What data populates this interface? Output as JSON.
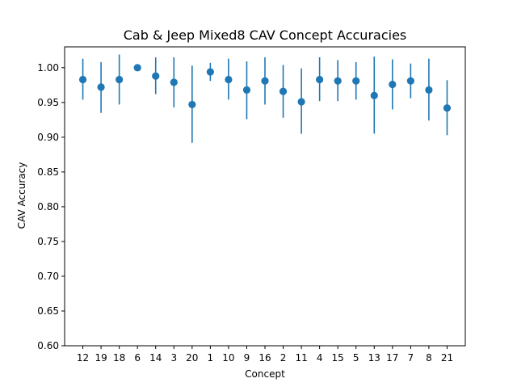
{
  "chart_data": {
    "type": "scatter",
    "title": "Cab & Jeep Mixed8 CAV Concept Accuracies",
    "xlabel": "Concept",
    "ylabel": "CAV Accuracy",
    "ylim": [
      0.6,
      1.03
    ],
    "yticks": [
      0.6,
      0.65,
      0.7,
      0.75,
      0.8,
      0.85,
      0.9,
      0.95,
      1.0
    ],
    "ytick_labels": [
      "0.60",
      "0.65",
      "0.70",
      "0.75",
      "0.80",
      "0.85",
      "0.90",
      "0.95",
      "1.00"
    ],
    "grid": false,
    "legend": "none",
    "categories": [
      "12",
      "19",
      "18",
      "6",
      "14",
      "3",
      "20",
      "1",
      "10",
      "9",
      "16",
      "2",
      "11",
      "4",
      "15",
      "5",
      "13",
      "17",
      "7",
      "8",
      "21"
    ],
    "values": [
      0.983,
      0.972,
      0.983,
      1.0,
      0.988,
      0.979,
      0.947,
      0.994,
      0.983,
      0.968,
      0.981,
      0.966,
      0.951,
      0.983,
      0.981,
      0.981,
      0.96,
      0.976,
      0.981,
      0.968,
      0.942
    ],
    "error_low": [
      0.954,
      0.935,
      0.947,
      1.0,
      0.962,
      0.943,
      0.892,
      0.981,
      0.954,
      0.926,
      0.947,
      0.928,
      0.905,
      0.952,
      0.952,
      0.954,
      0.905,
      0.94,
      0.956,
      0.924,
      0.903
    ],
    "error_high": [
      1.013,
      1.008,
      1.019,
      1.0,
      1.015,
      1.015,
      1.003,
      1.007,
      1.013,
      1.009,
      1.015,
      1.004,
      0.999,
      1.015,
      1.011,
      1.008,
      1.016,
      1.012,
      1.006,
      1.013,
      0.982
    ],
    "marker_color": "#1f77b4"
  }
}
